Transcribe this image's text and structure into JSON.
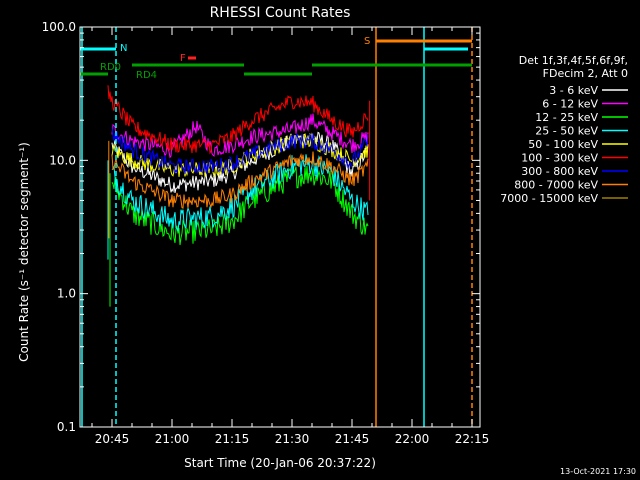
{
  "chart_data": {
    "type": "line",
    "title": "RHESSI Count Rates",
    "xlabel": "Start Time (20-Jan-06 20:37:22)",
    "ylabel": "Count Rate (s⁻¹ detector segment⁻¹)",
    "y_scale": "log",
    "ylim": [
      0.1,
      100
    ],
    "xlim": [
      "20:37",
      "22:17"
    ],
    "x_ticks": [
      "20:45",
      "21:00",
      "21:15",
      "21:30",
      "21:45",
      "22:00",
      "22:15"
    ],
    "y_ticks": [
      "0.1",
      "1.0",
      "10.0",
      "100.0"
    ],
    "grid": false,
    "legend_position": "right",
    "legend_header": [
      "Det 1f,3f,4f,5f,6f,9f,",
      "FDecim 2, Att 0"
    ],
    "series": [
      {
        "name": "3 - 6 keV",
        "color": "#ffffff",
        "x": [
          "20:45",
          "20:50",
          "21:00",
          "21:10",
          "21:15",
          "21:20",
          "21:30",
          "21:35",
          "21:40",
          "21:45",
          "21:49"
        ],
        "y": [
          13,
          9,
          6.5,
          7,
          8,
          10,
          14,
          15,
          13,
          8,
          12
        ]
      },
      {
        "name": "6 - 12 keV",
        "color": "#ff00ff",
        "x": [
          "20:45",
          "20:50",
          "21:00",
          "21:06",
          "21:10",
          "21:15",
          "21:20",
          "21:30",
          "21:35",
          "21:40",
          "21:45",
          "21:49"
        ],
        "y": [
          17,
          14,
          12,
          18,
          12,
          13,
          15,
          17,
          20,
          16,
          13,
          15
        ]
      },
      {
        "name": "12 - 25 keV",
        "color": "#00ff00",
        "x": [
          "20:45",
          "20:50",
          "21:00",
          "21:10",
          "21:15",
          "21:20",
          "21:30",
          "21:35",
          "21:40",
          "21:45",
          "21:49"
        ],
        "y": [
          7,
          4,
          2.8,
          3,
          3.5,
          5,
          7.5,
          8,
          7,
          4,
          3
        ]
      },
      {
        "name": "25 - 50 keV",
        "color": "#00ffff",
        "x": [
          "20:45",
          "20:50",
          "21:00",
          "21:10",
          "21:15",
          "21:20",
          "21:30",
          "21:35",
          "21:40",
          "21:45",
          "21:49"
        ],
        "y": [
          8,
          5,
          3.5,
          3.8,
          4.5,
          6,
          9,
          9.5,
          8,
          5,
          4
        ]
      },
      {
        "name": "50 - 100 keV",
        "color": "#ffff00",
        "x": [
          "20:45",
          "20:50",
          "21:00",
          "21:10",
          "21:15",
          "21:20",
          "21:30",
          "21:35",
          "21:40",
          "21:45",
          "21:49"
        ],
        "y": [
          12,
          10,
          8.5,
          8.5,
          9,
          11,
          14,
          14,
          12,
          10,
          12
        ]
      },
      {
        "name": "100 - 300 keV",
        "color": "#ff0000",
        "x": [
          "20:44",
          "20:45",
          "20:50",
          "21:00",
          "21:10",
          "21:15",
          "21:20",
          "21:30",
          "21:35",
          "21:40",
          "21:45",
          "21:49"
        ],
        "y": [
          32,
          28,
          18,
          13,
          13,
          15,
          20,
          28,
          27,
          20,
          16,
          22
        ]
      },
      {
        "name": "300 - 800 keV",
        "color": "#0000ff",
        "x": [
          "20:45",
          "20:50",
          "21:00",
          "21:10",
          "21:15",
          "21:20",
          "21:30",
          "21:35",
          "21:40",
          "21:45",
          "21:49"
        ],
        "y": [
          16,
          12,
          9,
          9,
          9.5,
          11,
          14,
          14,
          12,
          9.5,
          14
        ]
      },
      {
        "name": "800 - 7000 keV",
        "color": "#ff8000",
        "x": [
          "20:45",
          "20:50",
          "21:00",
          "21:10",
          "21:15",
          "21:20",
          "21:30",
          "21:35",
          "21:40",
          "21:45",
          "21:49"
        ],
        "y": [
          10,
          7,
          5,
          5,
          5.5,
          7,
          10,
          10.5,
          9,
          7,
          9
        ]
      },
      {
        "name": "7000 - 15000 keV",
        "color": "#a08000",
        "x": [],
        "y": []
      }
    ],
    "flags": [
      {
        "label": "N",
        "color": "#00ffff"
      },
      {
        "label": "RD0",
        "color": "#00a000"
      },
      {
        "label": "RD4",
        "color": "#00a000"
      },
      {
        "label": "F",
        "color": "#ff2020"
      },
      {
        "label": "S",
        "color": "#ff8000"
      }
    ],
    "footer_timestamp": "13-Oct-2021 17:30"
  }
}
